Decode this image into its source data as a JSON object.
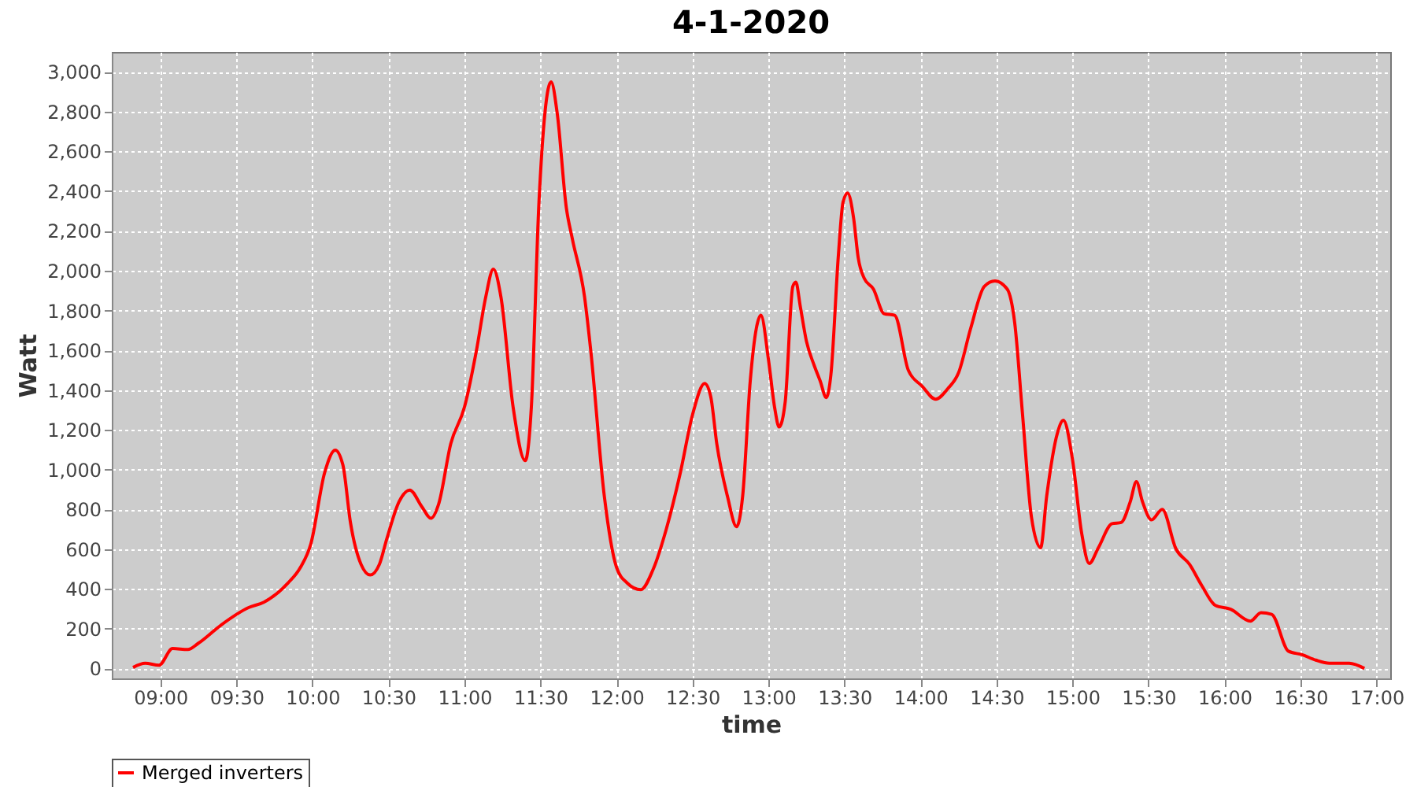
{
  "chart_data": {
    "type": "line",
    "title": "4-1-2020",
    "xlabel": "time",
    "ylabel": "Watt",
    "grid": true,
    "legend": "bottom",
    "marker": "none",
    "line_style": "solid",
    "xlim": [
      8.68,
      17.09
    ],
    "xticks": [
      {
        "value": 9,
        "label": "09:00"
      },
      {
        "value": 9.5,
        "label": "09:30"
      },
      {
        "value": 10,
        "label": "10:00"
      },
      {
        "value": 10.5,
        "label": "10:30"
      },
      {
        "value": 11,
        "label": "11:00"
      },
      {
        "value": 11.5,
        "label": "11:30"
      },
      {
        "value": 12,
        "label": "12:00"
      },
      {
        "value": 12.5,
        "label": "12:30"
      },
      {
        "value": 13,
        "label": "13:00"
      },
      {
        "value": 13.5,
        "label": "13:30"
      },
      {
        "value": 14,
        "label": "14:00"
      },
      {
        "value": 14.5,
        "label": "14:30"
      },
      {
        "value": 15,
        "label": "15:00"
      },
      {
        "value": 15.5,
        "label": "15:30"
      },
      {
        "value": 16,
        "label": "16:00"
      },
      {
        "value": 16.5,
        "label": "16:30"
      },
      {
        "value": 17,
        "label": "17:00"
      }
    ],
    "ylim": [
      -50,
      3100
    ],
    "yticks": [
      0,
      200,
      400,
      600,
      800,
      {
        "value": 1000,
        "label": "1,000"
      },
      {
        "value": 1200,
        "label": "1,200"
      },
      {
        "value": 1400,
        "label": "1,400"
      },
      {
        "value": 1600,
        "label": "1,600"
      },
      {
        "value": 1800,
        "label": "1,800"
      },
      {
        "value": 2000,
        "label": "2,000"
      },
      {
        "value": 2200,
        "label": "2,200"
      },
      {
        "value": 2400,
        "label": "2,400"
      },
      {
        "value": 2600,
        "label": "2,600"
      },
      {
        "value": 2800,
        "label": "2,800"
      },
      {
        "value": 3000,
        "label": "3,000"
      }
    ],
    "series": [
      {
        "name": "Merged inverters",
        "color": "#ff0000",
        "x": [
          8.82,
          8.9,
          8.99,
          9.08,
          9.18,
          9.25,
          9.4,
          9.58,
          9.68,
          9.84,
          9.92,
          9.99,
          10.08,
          10.15,
          10.2,
          10.25,
          10.32,
          10.38,
          10.44,
          10.49,
          10.57,
          10.64,
          10.72,
          10.78,
          10.83,
          10.91,
          11.0,
          11.08,
          11.14,
          11.19,
          11.24,
          11.32,
          11.4,
          11.44,
          11.49,
          11.57,
          11.61,
          11.67,
          11.71,
          11.79,
          11.83,
          11.92,
          12.0,
          12.07,
          12.16,
          12.24,
          12.33,
          12.42,
          12.5,
          12.58,
          12.62,
          12.66,
          12.73,
          12.79,
          12.83,
          12.88,
          12.92,
          12.95,
          13.0,
          13.04,
          13.07,
          13.11,
          13.16,
          13.18,
          13.21,
          13.25,
          13.3,
          13.34,
          13.38,
          13.41,
          13.46,
          13.49,
          13.52,
          13.56,
          13.59,
          13.63,
          13.69,
          13.76,
          13.83,
          13.92,
          14.01,
          14.1,
          14.18,
          14.25,
          14.33,
          14.42,
          14.49,
          14.57,
          14.62,
          14.67,
          14.73,
          14.79,
          14.83,
          14.9,
          14.94,
          15.0,
          15.06,
          15.11,
          15.17,
          15.26,
          15.32,
          15.38,
          15.42,
          15.46,
          15.52,
          15.59,
          15.68,
          15.77,
          15.85,
          15.94,
          16.04,
          16.17,
          16.24,
          16.31,
          16.42,
          16.51,
          16.6,
          16.69,
          16.82,
          16.92
        ],
        "values": [
          5,
          26,
          16,
          100,
          95,
          127,
          219,
          306,
          333,
          430,
          507,
          628,
          984,
          1098,
          1024,
          734,
          523,
          470,
          523,
          654,
          839,
          897,
          813,
          755,
          826,
          1130,
          1314,
          1604,
          1868,
          2008,
          1868,
          1314,
          1045,
          1314,
          2343,
          2950,
          2792,
          2317,
          2159,
          1868,
          1604,
          866,
          509,
          430,
          396,
          496,
          707,
          984,
          1275,
          1433,
          1367,
          1129,
          866,
          713,
          866,
          1446,
          1710,
          1776,
          1552,
          1314,
          1214,
          1341,
          1921,
          1942,
          1816,
          1644,
          1525,
          1446,
          1362,
          1473,
          2080,
          2343,
          2391,
          2264,
          2066,
          1961,
          1908,
          1784,
          1776,
          1499,
          1420,
          1354,
          1407,
          1486,
          1710,
          1921,
          1948,
          1908,
          1736,
          1288,
          760,
          607,
          866,
          1182,
          1248,
          1050,
          681,
          528,
          607,
          728,
          734,
          839,
          939,
          839,
          747,
          800,
          602,
          523,
          417,
          317,
          298,
          238,
          280,
          272,
          87,
          69,
          42,
          26,
          26,
          0
        ]
      }
    ]
  }
}
